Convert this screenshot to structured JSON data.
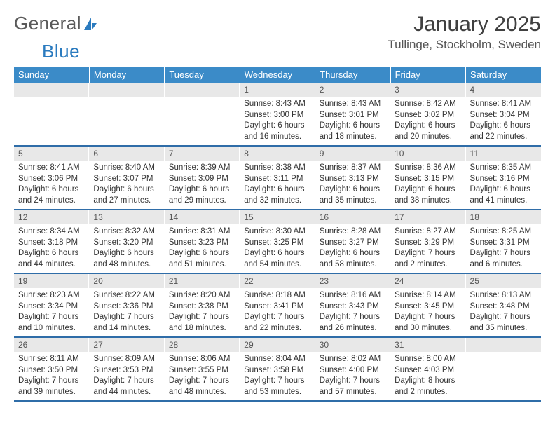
{
  "brand": {
    "part1": "General",
    "part2": "Blue"
  },
  "title": "January 2025",
  "location": "Tullinge, Stockholm, Sweden",
  "weekdays": [
    "Sunday",
    "Monday",
    "Tuesday",
    "Wednesday",
    "Thursday",
    "Friday",
    "Saturday"
  ],
  "colors": {
    "header_bg": "#3b8bc8",
    "header_text": "#ffffff",
    "date_bg": "#e8e8e8",
    "row_border": "#2f6da8",
    "brand_gray": "#5a5a5a",
    "brand_blue": "#2b7bbf"
  },
  "weeks": [
    [
      null,
      null,
      null,
      {
        "d": "1",
        "sunrise": "8:43 AM",
        "sunset": "3:00 PM",
        "daylight": "6 hours and 16 minutes."
      },
      {
        "d": "2",
        "sunrise": "8:43 AM",
        "sunset": "3:01 PM",
        "daylight": "6 hours and 18 minutes."
      },
      {
        "d": "3",
        "sunrise": "8:42 AM",
        "sunset": "3:02 PM",
        "daylight": "6 hours and 20 minutes."
      },
      {
        "d": "4",
        "sunrise": "8:41 AM",
        "sunset": "3:04 PM",
        "daylight": "6 hours and 22 minutes."
      }
    ],
    [
      {
        "d": "5",
        "sunrise": "8:41 AM",
        "sunset": "3:06 PM",
        "daylight": "6 hours and 24 minutes."
      },
      {
        "d": "6",
        "sunrise": "8:40 AM",
        "sunset": "3:07 PM",
        "daylight": "6 hours and 27 minutes."
      },
      {
        "d": "7",
        "sunrise": "8:39 AM",
        "sunset": "3:09 PM",
        "daylight": "6 hours and 29 minutes."
      },
      {
        "d": "8",
        "sunrise": "8:38 AM",
        "sunset": "3:11 PM",
        "daylight": "6 hours and 32 minutes."
      },
      {
        "d": "9",
        "sunrise": "8:37 AM",
        "sunset": "3:13 PM",
        "daylight": "6 hours and 35 minutes."
      },
      {
        "d": "10",
        "sunrise": "8:36 AM",
        "sunset": "3:15 PM",
        "daylight": "6 hours and 38 minutes."
      },
      {
        "d": "11",
        "sunrise": "8:35 AM",
        "sunset": "3:16 PM",
        "daylight": "6 hours and 41 minutes."
      }
    ],
    [
      {
        "d": "12",
        "sunrise": "8:34 AM",
        "sunset": "3:18 PM",
        "daylight": "6 hours and 44 minutes."
      },
      {
        "d": "13",
        "sunrise": "8:32 AM",
        "sunset": "3:20 PM",
        "daylight": "6 hours and 48 minutes."
      },
      {
        "d": "14",
        "sunrise": "8:31 AM",
        "sunset": "3:23 PM",
        "daylight": "6 hours and 51 minutes."
      },
      {
        "d": "15",
        "sunrise": "8:30 AM",
        "sunset": "3:25 PM",
        "daylight": "6 hours and 54 minutes."
      },
      {
        "d": "16",
        "sunrise": "8:28 AM",
        "sunset": "3:27 PM",
        "daylight": "6 hours and 58 minutes."
      },
      {
        "d": "17",
        "sunrise": "8:27 AM",
        "sunset": "3:29 PM",
        "daylight": "7 hours and 2 minutes."
      },
      {
        "d": "18",
        "sunrise": "8:25 AM",
        "sunset": "3:31 PM",
        "daylight": "7 hours and 6 minutes."
      }
    ],
    [
      {
        "d": "19",
        "sunrise": "8:23 AM",
        "sunset": "3:34 PM",
        "daylight": "7 hours and 10 minutes."
      },
      {
        "d": "20",
        "sunrise": "8:22 AM",
        "sunset": "3:36 PM",
        "daylight": "7 hours and 14 minutes."
      },
      {
        "d": "21",
        "sunrise": "8:20 AM",
        "sunset": "3:38 PM",
        "daylight": "7 hours and 18 minutes."
      },
      {
        "d": "22",
        "sunrise": "8:18 AM",
        "sunset": "3:41 PM",
        "daylight": "7 hours and 22 minutes."
      },
      {
        "d": "23",
        "sunrise": "8:16 AM",
        "sunset": "3:43 PM",
        "daylight": "7 hours and 26 minutes."
      },
      {
        "d": "24",
        "sunrise": "8:14 AM",
        "sunset": "3:45 PM",
        "daylight": "7 hours and 30 minutes."
      },
      {
        "d": "25",
        "sunrise": "8:13 AM",
        "sunset": "3:48 PM",
        "daylight": "7 hours and 35 minutes."
      }
    ],
    [
      {
        "d": "26",
        "sunrise": "8:11 AM",
        "sunset": "3:50 PM",
        "daylight": "7 hours and 39 minutes."
      },
      {
        "d": "27",
        "sunrise": "8:09 AM",
        "sunset": "3:53 PM",
        "daylight": "7 hours and 44 minutes."
      },
      {
        "d": "28",
        "sunrise": "8:06 AM",
        "sunset": "3:55 PM",
        "daylight": "7 hours and 48 minutes."
      },
      {
        "d": "29",
        "sunrise": "8:04 AM",
        "sunset": "3:58 PM",
        "daylight": "7 hours and 53 minutes."
      },
      {
        "d": "30",
        "sunrise": "8:02 AM",
        "sunset": "4:00 PM",
        "daylight": "7 hours and 57 minutes."
      },
      {
        "d": "31",
        "sunrise": "8:00 AM",
        "sunset": "4:03 PM",
        "daylight": "8 hours and 2 minutes."
      },
      null
    ]
  ],
  "labels": {
    "sunrise": "Sunrise:",
    "sunset": "Sunset:",
    "daylight": "Daylight:"
  }
}
